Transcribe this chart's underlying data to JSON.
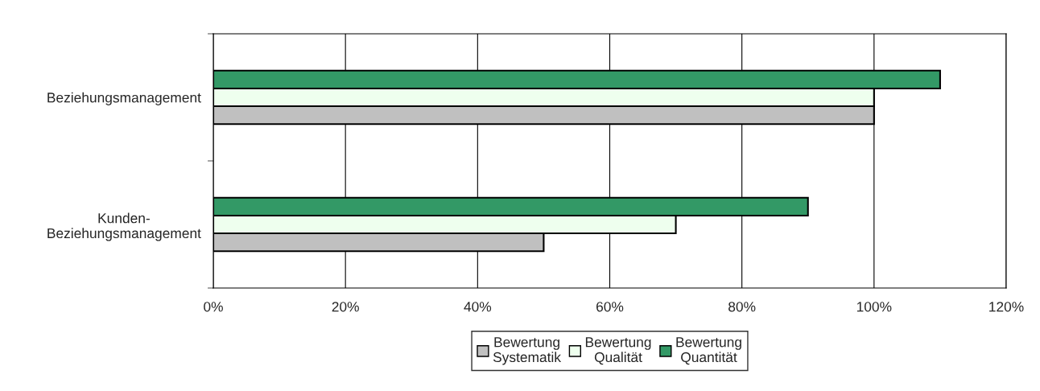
{
  "chart_data": {
    "type": "bar",
    "orientation": "horizontal",
    "categories": [
      "Beziehungsmanagement",
      "Kunden-\nBeziehungsmanagement"
    ],
    "series": [
      {
        "name": "Bewertung\nSystematik",
        "color": "#c0c0c0",
        "values": [
          100,
          50
        ]
      },
      {
        "name": "Bewertung\nQualität",
        "color": "#eeffee",
        "values": [
          100,
          70
        ]
      },
      {
        "name": "Bewertung\nQuantität",
        "color": "#339966",
        "values": [
          110,
          90
        ]
      }
    ],
    "xlim": [
      0,
      120
    ],
    "xticks": [
      {
        "value": 0,
        "label": "0%"
      },
      {
        "value": 20,
        "label": "20%"
      },
      {
        "value": 40,
        "label": "40%"
      },
      {
        "value": 60,
        "label": "60%"
      },
      {
        "value": 80,
        "label": "80%"
      },
      {
        "value": 100,
        "label": "100%"
      },
      {
        "value": 120,
        "label": "120%"
      }
    ],
    "grid": "x",
    "legend": "bottom"
  }
}
